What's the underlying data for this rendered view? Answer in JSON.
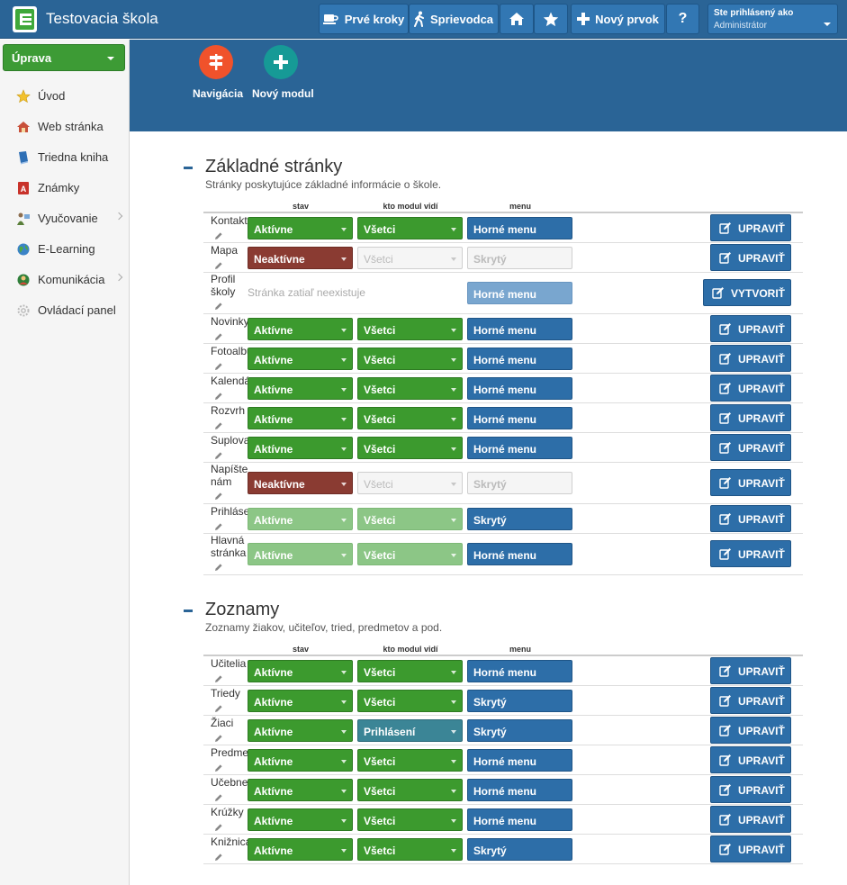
{
  "header": {
    "app_title": "Testovacia škola",
    "buttons": {
      "first_steps": "Prvé kroky",
      "guide": "Sprievodca",
      "new_item": "Nový prvok",
      "help": "?"
    },
    "user": {
      "caption": "Ste prihlásený ako",
      "name": "Administrátor"
    }
  },
  "subheader": {
    "navigation_label": "Navigácia",
    "new_module_label": "Nový modul"
  },
  "sidebar": {
    "dropdown_label": "Úprava",
    "items": [
      {
        "label": "Úvod",
        "icon": "star-icon"
      },
      {
        "label": "Web stránka",
        "icon": "house-icon"
      },
      {
        "label": "Triedna kniha",
        "icon": "book-icon"
      },
      {
        "label": "Známky",
        "icon": "grade-icon"
      },
      {
        "label": "Vyučovanie",
        "icon": "teaching-icon"
      },
      {
        "label": "E-Learning",
        "icon": "globe-icon"
      },
      {
        "label": "Komunikácia",
        "icon": "communication-icon"
      },
      {
        "label": "Ovládací panel",
        "icon": "control-panel-icon"
      }
    ]
  },
  "columns": {
    "state": "stav",
    "visibility": "kto modul vidí",
    "menu": "menu"
  },
  "sections": {
    "basic": {
      "title": "Základné stránky",
      "subtitle": "Stránky poskytujúce základné informácie o škole.",
      "nonexistent_text": "Stránka zatiaľ neexistuje",
      "rows": [
        {
          "name": "Kontakt",
          "state": "Aktívne",
          "visibility": "Všetci",
          "menu": "Horné menu",
          "action": "UPRAVIŤ"
        },
        {
          "name": "Mapa",
          "state": "Neaktívne",
          "visibility": "Všetci",
          "menu": "Skrytý",
          "action": "UPRAVIŤ"
        },
        {
          "name": "Profil školy",
          "menu": "Horné menu",
          "action": "VYTVORIŤ"
        },
        {
          "name": "Novinky",
          "state": "Aktívne",
          "visibility": "Všetci",
          "menu": "Horné menu",
          "action": "UPRAVIŤ"
        },
        {
          "name": "Fotoalbum",
          "state": "Aktívne",
          "visibility": "Všetci",
          "menu": "Horné menu",
          "action": "UPRAVIŤ"
        },
        {
          "name": "Kalendár",
          "state": "Aktívne",
          "visibility": "Všetci",
          "menu": "Horné menu",
          "action": "UPRAVIŤ"
        },
        {
          "name": "Rozvrh",
          "state": "Aktívne",
          "visibility": "Všetci",
          "menu": "Horné menu",
          "action": "UPRAVIŤ"
        },
        {
          "name": "Suplovanie",
          "state": "Aktívne",
          "visibility": "Všetci",
          "menu": "Horné menu",
          "action": "UPRAVIŤ"
        },
        {
          "name": "Napíšte nám",
          "state": "Neaktívne",
          "visibility": "Všetci",
          "menu": "Skrytý",
          "action": "UPRAVIŤ"
        },
        {
          "name": "Prihlásenie",
          "state": "Aktívne",
          "visibility": "Všetci",
          "menu": "Skrytý",
          "action": "UPRAVIŤ"
        },
        {
          "name": "Hlavná stránka",
          "state": "Aktívne",
          "visibility": "Všetci",
          "menu": "Horné menu",
          "action": "UPRAVIŤ"
        }
      ]
    },
    "lists": {
      "title": "Zoznamy",
      "subtitle": "Zoznamy žiakov, učiteľov, tried, predmetov a pod.",
      "rows": [
        {
          "name": "Učitelia",
          "state": "Aktívne",
          "visibility": "Všetci",
          "menu": "Horné menu",
          "action": "UPRAVIŤ"
        },
        {
          "name": "Triedy",
          "state": "Aktívne",
          "visibility": "Všetci",
          "menu": "Skrytý",
          "action": "UPRAVIŤ"
        },
        {
          "name": "Žiaci",
          "state": "Aktívne",
          "visibility": "Prihlásení",
          "menu": "Skrytý",
          "action": "UPRAVIŤ"
        },
        {
          "name": "Predmety",
          "state": "Aktívne",
          "visibility": "Všetci",
          "menu": "Horné menu",
          "action": "UPRAVIŤ"
        },
        {
          "name": "Učebne",
          "state": "Aktívne",
          "visibility": "Všetci",
          "menu": "Horné menu",
          "action": "UPRAVIŤ"
        },
        {
          "name": "Krúžky",
          "state": "Aktívne",
          "visibility": "Všetci",
          "menu": "Horné menu",
          "action": "UPRAVIŤ"
        },
        {
          "name": "Knižnica",
          "state": "Aktívne",
          "visibility": "Všetci",
          "menu": "Skrytý",
          "action": "UPRAVIŤ"
        }
      ]
    }
  },
  "colors": {
    "header_blue": "#2a6496",
    "active_green": "#3c9a2e",
    "inactive_red": "#8a3b32",
    "menu_blue": "#2d6ea8",
    "navigation_orange": "#f0522b",
    "new_module_teal": "#169a96"
  }
}
